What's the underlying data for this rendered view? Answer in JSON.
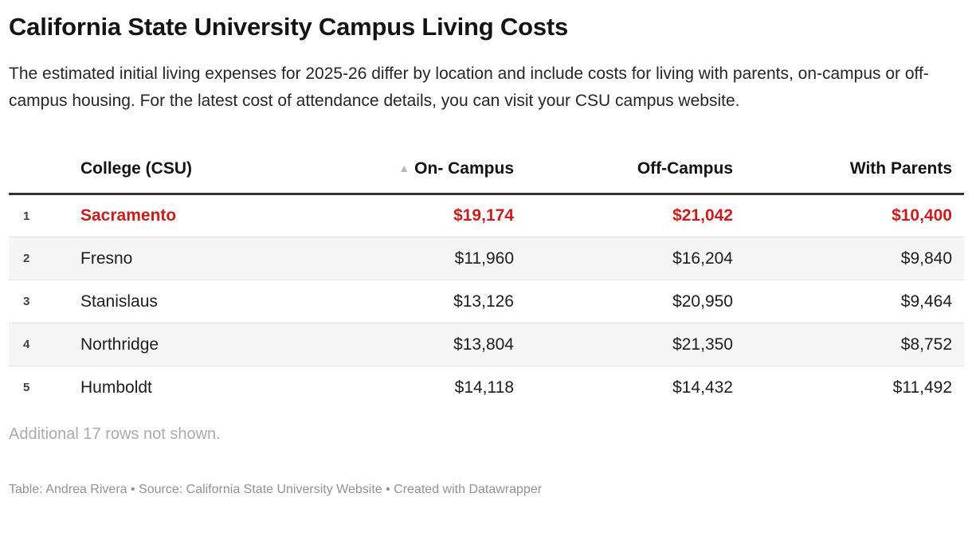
{
  "header": {
    "title": "California State University Campus Living Costs",
    "description": "The estimated initial living expenses for 2025-26 differ by location and include costs for living with parents, on-campus or off-campus housing. For the latest cost of attendance details, you can visit your CSU campus website."
  },
  "table": {
    "sort_icon": "▲",
    "columns": [
      {
        "label": "College (CSU)",
        "align": "left",
        "sorted": false
      },
      {
        "label": "On- Campus",
        "align": "right",
        "sorted": true,
        "sort_order": "ascending"
      },
      {
        "label": "Off-Campus",
        "align": "right",
        "sorted": false
      },
      {
        "label": "With Parents",
        "align": "right",
        "sorted": false
      }
    ],
    "rows": [
      {
        "rank": "1",
        "college": "Sacramento",
        "on_campus": "$19,174",
        "off_campus": "$21,042",
        "with_parents": "$10,400",
        "highlight": true
      },
      {
        "rank": "2",
        "college": "Fresno",
        "on_campus": "$11,960",
        "off_campus": "$16,204",
        "with_parents": "$9,840",
        "highlight": false
      },
      {
        "rank": "3",
        "college": "Stanislaus",
        "on_campus": "$13,126",
        "off_campus": "$20,950",
        "with_parents": "$9,464",
        "highlight": false
      },
      {
        "rank": "4",
        "college": "Northridge",
        "on_campus": "$13,804",
        "off_campus": "$21,350",
        "with_parents": "$8,752",
        "highlight": false
      },
      {
        "rank": "5",
        "college": "Humboldt",
        "on_campus": "$14,118",
        "off_campus": "$14,432",
        "with_parents": "$11,492",
        "highlight": false
      }
    ],
    "more_rows_note": "Additional 17 rows not shown."
  },
  "footer": {
    "table_label": "Table: ",
    "table_author": "Andrea Rivera",
    "separator": " • ",
    "source_label": "Source: ",
    "source_name": "California State University Website",
    "created_label": "Created with ",
    "created_tool": "Datawrapper"
  },
  "colors": {
    "highlight_red": "#c71e1d",
    "row_alt_bg": "#f5f5f5",
    "header_border": "#333333",
    "row_border": "#e2e2e2",
    "muted_text": "#ababab",
    "footer_text": "#929292",
    "sort_icon_gray": "#b8b8b8"
  },
  "chart_data": {
    "type": "table",
    "title": "California State University Campus Living Costs",
    "subtitle": "The estimated initial living expenses for 2025-26 differ by location and include costs for living with parents, on-campus or off-campus housing. For the latest cost of attendance details, you can visit your CSU campus website.",
    "columns": [
      "College (CSU)",
      "On- Campus",
      "Off-Campus",
      "With Parents"
    ],
    "rows": [
      [
        "Sacramento",
        19174,
        21042,
        10400
      ],
      [
        "Fresno",
        11960,
        16204,
        9840
      ],
      [
        "Stanislaus",
        13126,
        20950,
        9464
      ],
      [
        "Northridge",
        13804,
        21350,
        8752
      ],
      [
        "Humboldt",
        14118,
        14432,
        11492
      ]
    ],
    "highlighted_row": "Sacramento",
    "sorted_by": "On- Campus",
    "sort_order": "ascending",
    "note": "Additional 17 rows not shown.",
    "credit": "Table: Andrea Rivera • Source: California State University Website • Created with Datawrapper"
  }
}
